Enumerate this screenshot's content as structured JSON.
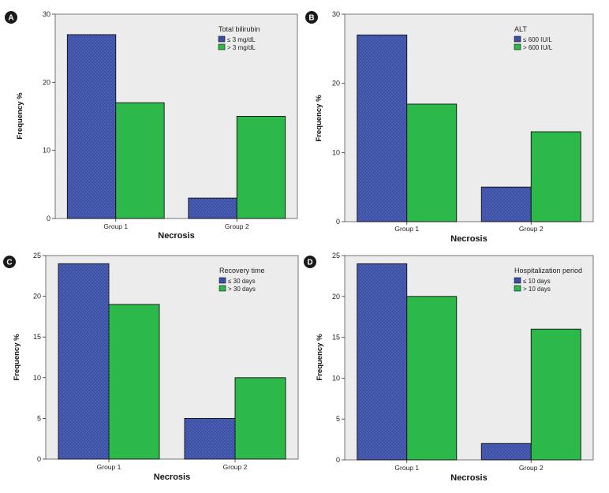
{
  "colors": {
    "group_le": "#3b4fa6",
    "group_gt": "#2db84a",
    "plot_bg": "#ececec",
    "badge": "#1a1a1a"
  },
  "chart_data": [
    {
      "panel": "A",
      "type": "bar",
      "legend_title": "Total bilirubin",
      "legend_position": "top-right",
      "categories": [
        "Group 1",
        "Group 2"
      ],
      "series": [
        {
          "name": "≤ 3 mg/dL",
          "values": [
            27,
            3
          ]
        },
        {
          "name": "> 3 mg/dL",
          "values": [
            17,
            15
          ]
        }
      ],
      "xlabel": "Necrosis",
      "ylabel": "Frequency %",
      "ylim": [
        0,
        30
      ],
      "yticks": [
        0,
        10,
        20,
        30
      ]
    },
    {
      "panel": "B",
      "type": "bar",
      "legend_title": "ALT",
      "legend_position": "top-right",
      "categories": [
        "Group 1",
        "Group 2"
      ],
      "series": [
        {
          "name": "≤ 600 IU/L",
          "values": [
            27,
            5
          ]
        },
        {
          "name": "> 600 IU/L",
          "values": [
            17,
            13
          ]
        }
      ],
      "xlabel": "Necrosis",
      "ylabel": "Frequency %",
      "ylim": [
        0,
        30
      ],
      "yticks": [
        0,
        10,
        20,
        30
      ]
    },
    {
      "panel": "C",
      "type": "bar",
      "legend_title": "Recovery time",
      "legend_position": "top-right",
      "categories": [
        "Group 1",
        "Group 2"
      ],
      "series": [
        {
          "name": "≤ 30 days",
          "values": [
            24,
            5
          ]
        },
        {
          "name": "> 30 days",
          "values": [
            19,
            10
          ]
        }
      ],
      "xlabel": "Necrosis",
      "ylabel": "Frequency %",
      "ylim": [
        0,
        25
      ],
      "yticks": [
        0,
        5,
        10,
        15,
        20,
        25
      ]
    },
    {
      "panel": "D",
      "type": "bar",
      "legend_title": "Hospitalization period",
      "legend_position": "top-right",
      "categories": [
        "Group 1",
        "Group 2"
      ],
      "series": [
        {
          "name": "≤ 10 days",
          "values": [
            24,
            2
          ]
        },
        {
          "name": "> 10 days",
          "values": [
            20,
            16
          ]
        }
      ],
      "xlabel": "Necrosis",
      "ylabel": "Frequency %",
      "ylim": [
        0,
        25
      ],
      "yticks": [
        0,
        5,
        10,
        15,
        20,
        25
      ]
    }
  ]
}
